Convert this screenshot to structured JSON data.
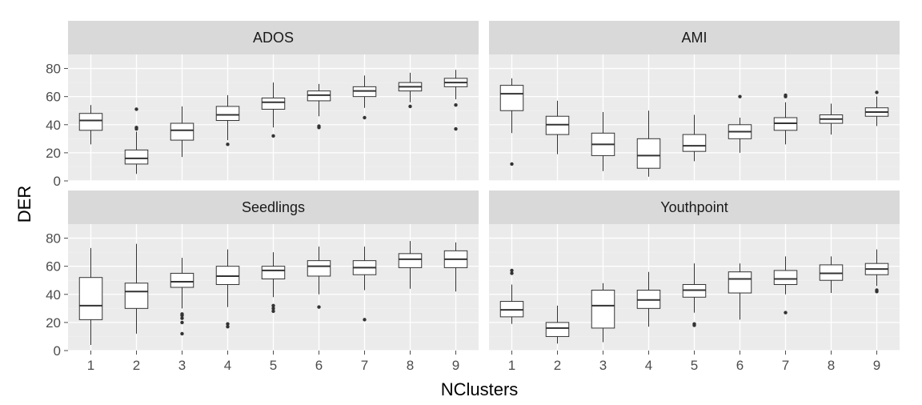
{
  "chart_data": {
    "type": "boxplot",
    "xlabel": "NClusters",
    "ylabel": "DER",
    "categories": [
      "1",
      "2",
      "3",
      "4",
      "5",
      "6",
      "7",
      "8",
      "9"
    ],
    "ylim": [
      0,
      90
    ],
    "yticks": [
      0,
      20,
      40,
      60,
      80
    ],
    "facet_layout": "2x2",
    "grid": true,
    "colors": {
      "panel_bg": "#ebebeb",
      "strip_bg": "#d9d9d9",
      "grid": "#ffffff",
      "box_fill": "#ffffff",
      "box_line": "#333333"
    },
    "panels": [
      {
        "title": "ADOS",
        "boxes": [
          {
            "min": 26,
            "q1": 36,
            "median": 43,
            "q3": 48,
            "max": 54,
            "outliers": []
          },
          {
            "min": 5,
            "q1": 12,
            "median": 16,
            "q3": 22,
            "max": 35,
            "outliers": [
              37,
              38,
              51
            ]
          },
          {
            "min": 17,
            "q1": 29,
            "median": 36,
            "q3": 41,
            "max": 53,
            "outliers": []
          },
          {
            "min": 29,
            "q1": 43,
            "median": 47,
            "q3": 53,
            "max": 61,
            "outliers": [
              26
            ]
          },
          {
            "min": 38,
            "q1": 51,
            "median": 56,
            "q3": 59,
            "max": 70,
            "outliers": [
              32
            ]
          },
          {
            "min": 46,
            "q1": 57,
            "median": 61,
            "q3": 64,
            "max": 69,
            "outliers": [
              38,
              39
            ]
          },
          {
            "min": 52,
            "q1": 60,
            "median": 64,
            "q3": 67,
            "max": 75,
            "outliers": [
              45
            ]
          },
          {
            "min": 56,
            "q1": 64,
            "median": 67,
            "q3": 70,
            "max": 77,
            "outliers": [
              53
            ]
          },
          {
            "min": 58,
            "q1": 67,
            "median": 70,
            "q3": 73,
            "max": 79,
            "outliers": [
              54,
              37
            ]
          }
        ]
      },
      {
        "title": "AMI",
        "boxes": [
          {
            "min": 34,
            "q1": 50,
            "median": 62,
            "q3": 68,
            "max": 73,
            "outliers": [
              12
            ]
          },
          {
            "min": 19,
            "q1": 33,
            "median": 40,
            "q3": 46,
            "max": 57,
            "outliers": []
          },
          {
            "min": 7,
            "q1": 18,
            "median": 26,
            "q3": 34,
            "max": 49,
            "outliers": []
          },
          {
            "min": 3,
            "q1": 9,
            "median": 18,
            "q3": 30,
            "max": 50,
            "outliers": []
          },
          {
            "min": 14,
            "q1": 21,
            "median": 25,
            "q3": 33,
            "max": 47,
            "outliers": []
          },
          {
            "min": 20,
            "q1": 30,
            "median": 35,
            "q3": 40,
            "max": 45,
            "outliers": [
              60
            ]
          },
          {
            "min": 26,
            "q1": 36,
            "median": 41,
            "q3": 45,
            "max": 56,
            "outliers": [
              60,
              61
            ]
          },
          {
            "min": 33,
            "q1": 41,
            "median": 44,
            "q3": 47,
            "max": 55,
            "outliers": []
          },
          {
            "min": 39,
            "q1": 46,
            "median": 49,
            "q3": 52,
            "max": 60,
            "outliers": [
              63
            ]
          }
        ]
      },
      {
        "title": "Seedlings",
        "boxes": [
          {
            "min": 4,
            "q1": 22,
            "median": 32,
            "q3": 52,
            "max": 73,
            "outliers": []
          },
          {
            "min": 12,
            "q1": 30,
            "median": 42,
            "q3": 48,
            "max": 76,
            "outliers": []
          },
          {
            "min": 30,
            "q1": 45,
            "median": 49,
            "q3": 55,
            "max": 66,
            "outliers": [
              12,
              20,
              23,
              25,
              26
            ]
          },
          {
            "min": 31,
            "q1": 47,
            "median": 53,
            "q3": 60,
            "max": 72,
            "outliers": [
              17,
              19
            ]
          },
          {
            "min": 38,
            "q1": 51,
            "median": 57,
            "q3": 60,
            "max": 70,
            "outliers": [
              28,
              30,
              32
            ]
          },
          {
            "min": 40,
            "q1": 53,
            "median": 60,
            "q3": 64,
            "max": 74,
            "outliers": [
              31
            ]
          },
          {
            "min": 43,
            "q1": 54,
            "median": 59,
            "q3": 64,
            "max": 74,
            "outliers": [
              22
            ]
          },
          {
            "min": 44,
            "q1": 59,
            "median": 65,
            "q3": 69,
            "max": 78,
            "outliers": []
          },
          {
            "min": 42,
            "q1": 59,
            "median": 65,
            "q3": 71,
            "max": 77,
            "outliers": []
          }
        ]
      },
      {
        "title": "Youthpoint",
        "boxes": [
          {
            "min": 19,
            "q1": 24,
            "median": 29,
            "q3": 35,
            "max": 47,
            "outliers": [
              55,
              57
            ]
          },
          {
            "min": 5,
            "q1": 10,
            "median": 16,
            "q3": 20,
            "max": 32,
            "outliers": []
          },
          {
            "min": 6,
            "q1": 16,
            "median": 32,
            "q3": 43,
            "max": 48,
            "outliers": []
          },
          {
            "min": 17,
            "q1": 30,
            "median": 36,
            "q3": 43,
            "max": 56,
            "outliers": []
          },
          {
            "min": 27,
            "q1": 38,
            "median": 43,
            "q3": 47,
            "max": 62,
            "outliers": [
              18,
              19
            ]
          },
          {
            "min": 22,
            "q1": 41,
            "median": 51,
            "q3": 56,
            "max": 62,
            "outliers": []
          },
          {
            "min": 40,
            "q1": 47,
            "median": 51,
            "q3": 57,
            "max": 67,
            "outliers": [
              27
            ]
          },
          {
            "min": 41,
            "q1": 50,
            "median": 55,
            "q3": 61,
            "max": 67,
            "outliers": []
          },
          {
            "min": 46,
            "q1": 54,
            "median": 58,
            "q3": 62,
            "max": 72,
            "outliers": [
              42,
              43
            ]
          }
        ]
      }
    ]
  }
}
